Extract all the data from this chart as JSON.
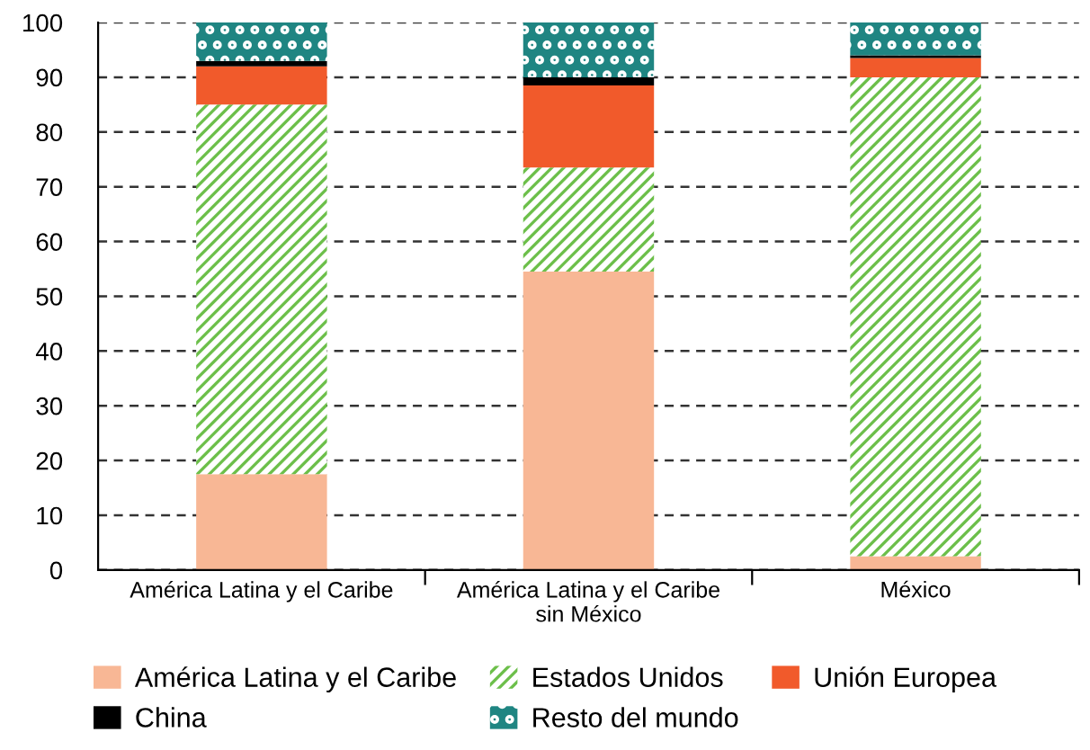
{
  "chart_data": {
    "type": "bar",
    "stacked": true,
    "categories": [
      "América Latina y el Caribe",
      "América Latina y el Caribe\nsin México",
      "México"
    ],
    "series": [
      {
        "name": "América Latina y el Caribe",
        "color": "#f8b795",
        "values": [
          17.5,
          54.5,
          2.5
        ]
      },
      {
        "name": "Estados Unidos",
        "color": "#6cbf4a",
        "values": [
          67.5,
          19,
          87.5
        ]
      },
      {
        "name": "Unión Europea",
        "color": "#f15a2b",
        "values": [
          7,
          15,
          3.5
        ]
      },
      {
        "name": "China",
        "color": "#000000",
        "values": [
          1,
          1.5,
          0.5
        ]
      },
      {
        "name": "Resto del mundo",
        "color": "#1f8582",
        "values": [
          7,
          10,
          6
        ]
      }
    ],
    "ylim": [
      0,
      100
    ],
    "yticks": [
      0,
      10,
      20,
      30,
      40,
      50,
      60,
      70,
      80,
      90,
      100
    ],
    "grid": "y",
    "legend": "bottom"
  }
}
